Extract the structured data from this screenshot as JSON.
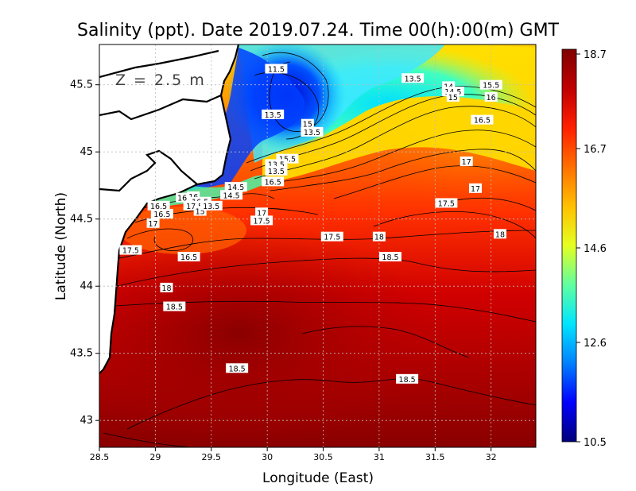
{
  "chart_data": {
    "type": "heatmap",
    "title": "Salinity (ppt). Date 2019.07.24. Time 00(h):00(m) GMT",
    "annotation": "Z = 2.5 m",
    "xlabel": "Longitude (East)",
    "ylabel": "Latitude (North)",
    "xlim": [
      28.5,
      32.4
    ],
    "ylim": [
      42.8,
      45.8
    ],
    "x_ticks": [
      "28.5",
      "29",
      "29.5",
      "30",
      "30.5",
      "31",
      "31.5",
      "32"
    ],
    "x_tick_values": [
      28.5,
      29,
      29.5,
      30,
      30.5,
      31,
      31.5,
      32
    ],
    "y_ticks": [
      "43",
      "43.5",
      "44",
      "44.5",
      "45",
      "45.5"
    ],
    "y_tick_values": [
      43,
      43.5,
      44,
      44.5,
      45,
      45.5
    ],
    "grid": true,
    "colorbar": {
      "min": 10.5,
      "max": 18.7,
      "ticks": [
        "18.7",
        "16.7",
        "14.6",
        "12.6",
        "10.5"
      ],
      "tick_values": [
        18.7,
        16.7,
        14.6,
        12.6,
        10.5
      ],
      "colors": [
        "#00007a",
        "#0000ff",
        "#0080ff",
        "#00e5ff",
        "#60ffa0",
        "#e5ff20",
        "#ffc000",
        "#ff7000",
        "#ff2000",
        "#c00000",
        "#800000"
      ]
    },
    "contour_labels": [
      {
        "text": "11.5",
        "lon": 30.08,
        "lat": 45.62
      },
      {
        "text": "13.5",
        "lon": 31.3,
        "lat": 45.55
      },
      {
        "text": "14",
        "lon": 31.62,
        "lat": 45.49
      },
      {
        "text": "14.5",
        "lon": 31.66,
        "lat": 45.45
      },
      {
        "text": "15",
        "lon": 31.66,
        "lat": 45.41
      },
      {
        "text": "15.5",
        "lon": 32.0,
        "lat": 45.5
      },
      {
        "text": "16",
        "lon": 32.0,
        "lat": 45.41
      },
      {
        "text": "16.5",
        "lon": 31.92,
        "lat": 45.24
      },
      {
        "text": "13.5",
        "lon": 30.05,
        "lat": 45.28
      },
      {
        "text": "15",
        "lon": 30.36,
        "lat": 45.21
      },
      {
        "text": "13.5",
        "lon": 30.4,
        "lat": 45.15
      },
      {
        "text": "15.5",
        "lon": 30.18,
        "lat": 44.95
      },
      {
        "text": "13.5",
        "lon": 30.08,
        "lat": 44.91
      },
      {
        "text": "13.5",
        "lon": 30.08,
        "lat": 44.86
      },
      {
        "text": "16.5",
        "lon": 30.05,
        "lat": 44.78
      },
      {
        "text": "17",
        "lon": 31.78,
        "lat": 44.93
      },
      {
        "text": "17",
        "lon": 31.86,
        "lat": 44.73
      },
      {
        "text": "17.5",
        "lon": 31.6,
        "lat": 44.62
      },
      {
        "text": "18",
        "lon": 32.08,
        "lat": 44.39
      },
      {
        "text": "14.5",
        "lon": 29.72,
        "lat": 44.74
      },
      {
        "text": "14.5",
        "lon": 29.68,
        "lat": 44.68
      },
      {
        "text": "16",
        "lon": 29.34,
        "lat": 44.67
      },
      {
        "text": "16",
        "lon": 29.24,
        "lat": 44.66
      },
      {
        "text": "16.5",
        "lon": 29.4,
        "lat": 44.63
      },
      {
        "text": "17.5",
        "lon": 29.35,
        "lat": 44.6
      },
      {
        "text": "15",
        "lon": 29.4,
        "lat": 44.56
      },
      {
        "text": "13.5",
        "lon": 29.5,
        "lat": 44.6
      },
      {
        "text": "16.5",
        "lon": 29.03,
        "lat": 44.6
      },
      {
        "text": "16.5",
        "lon": 29.06,
        "lat": 44.54
      },
      {
        "text": "17",
        "lon": 28.98,
        "lat": 44.47
      },
      {
        "text": "17",
        "lon": 29.95,
        "lat": 44.55
      },
      {
        "text": "17.5",
        "lon": 29.95,
        "lat": 44.49
      },
      {
        "text": "17.5",
        "lon": 28.78,
        "lat": 44.27
      },
      {
        "text": "16.5",
        "lon": 29.3,
        "lat": 44.22
      },
      {
        "text": "17.5",
        "lon": 30.58,
        "lat": 44.37
      },
      {
        "text": "18",
        "lon": 31.0,
        "lat": 44.37
      },
      {
        "text": "18.5",
        "lon": 31.1,
        "lat": 44.22
      },
      {
        "text": "18",
        "lon": 29.1,
        "lat": 43.99
      },
      {
        "text": "18.5",
        "lon": 29.17,
        "lat": 43.85
      },
      {
        "text": "18.5",
        "lon": 29.73,
        "lat": 43.39
      },
      {
        "text": "18.5",
        "lon": 31.25,
        "lat": 43.31
      }
    ]
  }
}
